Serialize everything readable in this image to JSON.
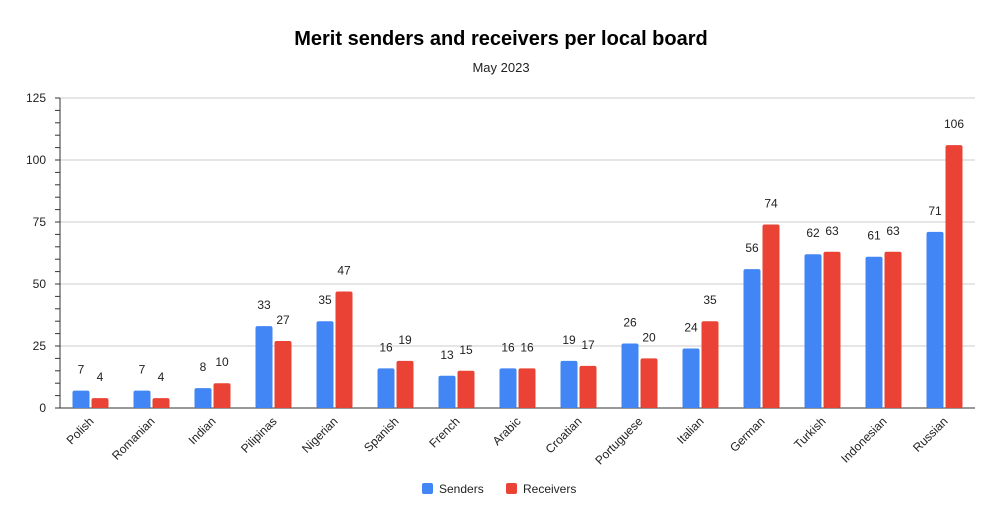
{
  "chart_data": {
    "type": "bar",
    "title": "Merit senders and receivers per local board",
    "subtitle": "May 2023",
    "xlabel": "",
    "ylabel": "",
    "ylim": [
      0,
      125
    ],
    "yticks": [
      0,
      25,
      50,
      75,
      100,
      125
    ],
    "grid": true,
    "legend_position": "bottom",
    "categories": [
      "Polish",
      "Romanian",
      "Indian",
      "Pilipinas",
      "Nigerian",
      "Spanish",
      "French",
      "Arabic",
      "Croatian",
      "Portuguese",
      "Italian",
      "German",
      "Turkish",
      "Indonesian",
      "Russian"
    ],
    "series": [
      {
        "name": "Senders",
        "color": "#4285f4",
        "values": [
          7,
          7,
          8,
          33,
          35,
          16,
          13,
          16,
          19,
          26,
          24,
          56,
          62,
          61,
          71
        ]
      },
      {
        "name": "Receivers",
        "color": "#ea4335",
        "values": [
          4,
          4,
          10,
          27,
          47,
          19,
          15,
          16,
          17,
          20,
          35,
          74,
          63,
          63,
          106
        ]
      }
    ]
  }
}
